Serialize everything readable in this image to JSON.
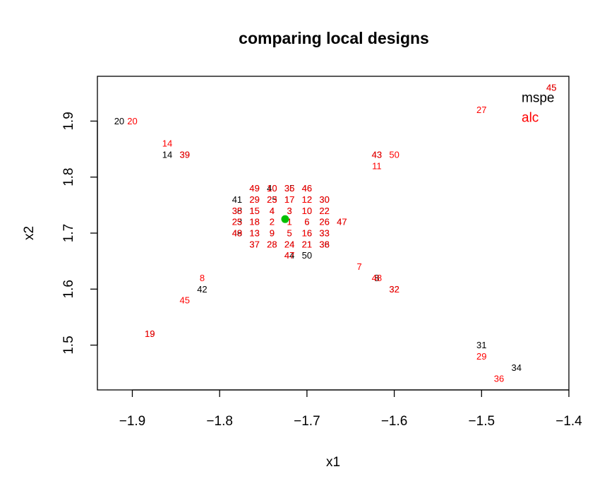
{
  "chart_data": {
    "type": "scatter",
    "title": "comparing local designs",
    "xlabel": "x1",
    "ylabel": "x2",
    "xlim": [
      -1.94,
      -1.4
    ],
    "ylim": [
      1.42,
      1.98
    ],
    "xticks": [
      -1.9,
      -1.8,
      -1.7,
      -1.6,
      -1.5,
      -1.4
    ],
    "yticks": [
      1.5,
      1.6,
      1.7,
      1.8,
      1.9
    ],
    "xtick_labels": [
      "−1.9",
      "−1.8",
      "−1.7",
      "−1.6",
      "−1.5",
      "−1.4"
    ],
    "ytick_labels": [
      "1.5",
      "1.6",
      "1.7",
      "1.8",
      "1.9"
    ],
    "grid": false,
    "legend_position": "top-right",
    "reference_point": {
      "x": -1.725,
      "y": 1.725,
      "color": "#00c000"
    },
    "series": [
      {
        "name": "mspe",
        "color": "#000000",
        "points": [
          {
            "label": "20",
            "x": -1.915,
            "y": 1.9
          },
          {
            "label": "14",
            "x": -1.86,
            "y": 1.84
          },
          {
            "label": "39",
            "x": -1.84,
            "y": 1.84
          },
          {
            "label": "42",
            "x": -1.82,
            "y": 1.6
          },
          {
            "label": "19",
            "x": -1.88,
            "y": 1.52
          },
          {
            "label": "41",
            "x": -1.78,
            "y": 1.76
          },
          {
            "label": "29",
            "x": -1.76,
            "y": 1.76
          },
          {
            "label": "25",
            "x": -1.74,
            "y": 1.76
          },
          {
            "label": "17",
            "x": -1.72,
            "y": 1.76
          },
          {
            "label": "12",
            "x": -1.7,
            "y": 1.76
          },
          {
            "label": "30",
            "x": -1.68,
            "y": 1.76
          },
          {
            "label": "49",
            "x": -1.76,
            "y": 1.78
          },
          {
            "label": "40",
            "x": -1.74,
            "y": 1.78
          },
          {
            "label": "35",
            "x": -1.72,
            "y": 1.78
          },
          {
            "label": "46",
            "x": -1.7,
            "y": 1.78
          },
          {
            "label": "38",
            "x": -1.78,
            "y": 1.74
          },
          {
            "label": "15",
            "x": -1.76,
            "y": 1.74
          },
          {
            "label": "4",
            "x": -1.74,
            "y": 1.74
          },
          {
            "label": "3",
            "x": -1.72,
            "y": 1.74
          },
          {
            "label": "10",
            "x": -1.7,
            "y": 1.74
          },
          {
            "label": "22",
            "x": -1.68,
            "y": 1.74
          },
          {
            "label": "23",
            "x": -1.78,
            "y": 1.72
          },
          {
            "label": "18",
            "x": -1.76,
            "y": 1.72
          },
          {
            "label": "2",
            "x": -1.74,
            "y": 1.72
          },
          {
            "label": "1",
            "x": -1.72,
            "y": 1.72
          },
          {
            "label": "6",
            "x": -1.7,
            "y": 1.72
          },
          {
            "label": "26",
            "x": -1.68,
            "y": 1.72
          },
          {
            "label": "47",
            "x": -1.66,
            "y": 1.72
          },
          {
            "label": "48",
            "x": -1.78,
            "y": 1.7
          },
          {
            "label": "13",
            "x": -1.76,
            "y": 1.7
          },
          {
            "label": "9",
            "x": -1.74,
            "y": 1.7
          },
          {
            "label": "5",
            "x": -1.72,
            "y": 1.7
          },
          {
            "label": "16",
            "x": -1.7,
            "y": 1.7
          },
          {
            "label": "33",
            "x": -1.68,
            "y": 1.7
          },
          {
            "label": "37",
            "x": -1.76,
            "y": 1.68
          },
          {
            "label": "28",
            "x": -1.74,
            "y": 1.68
          },
          {
            "label": "24",
            "x": -1.72,
            "y": 1.68
          },
          {
            "label": "21",
            "x": -1.7,
            "y": 1.68
          },
          {
            "label": "36",
            "x": -1.68,
            "y": 1.68
          },
          {
            "label": "44",
            "x": -1.72,
            "y": 1.66
          },
          {
            "label": "50",
            "x": -1.7,
            "y": 1.66
          },
          {
            "label": "43",
            "x": -1.62,
            "y": 1.84
          },
          {
            "label": "8",
            "x": -1.62,
            "y": 1.62
          },
          {
            "label": "32",
            "x": -1.6,
            "y": 1.6
          },
          {
            "label": "31",
            "x": -1.5,
            "y": 1.5
          },
          {
            "label": "34",
            "x": -1.46,
            "y": 1.46
          },
          {
            "label": "45",
            "x": -1.42,
            "y": 1.96
          }
        ]
      },
      {
        "name": "alc",
        "color": "#ff0000",
        "points": [
          {
            "label": "20",
            "x": -1.9,
            "y": 1.9
          },
          {
            "label": "14",
            "x": -1.86,
            "y": 1.86
          },
          {
            "label": "39",
            "x": -1.84,
            "y": 1.84
          },
          {
            "label": "8",
            "x": -1.82,
            "y": 1.62
          },
          {
            "label": "45",
            "x": -1.84,
            "y": 1.58
          },
          {
            "label": "19",
            "x": -1.88,
            "y": 1.52
          },
          {
            "label": "49",
            "x": -1.76,
            "y": 1.78
          },
          {
            "label": "10",
            "x": -1.74,
            "y": 1.78
          },
          {
            "label": "36",
            "x": -1.72,
            "y": 1.78
          },
          {
            "label": "46",
            "x": -1.7,
            "y": 1.78
          },
          {
            "label": "29",
            "x": -1.76,
            "y": 1.76
          },
          {
            "label": "23",
            "x": -1.74,
            "y": 1.76
          },
          {
            "label": "17",
            "x": -1.72,
            "y": 1.76
          },
          {
            "label": "12",
            "x": -1.7,
            "y": 1.76
          },
          {
            "label": "30",
            "x": -1.68,
            "y": 1.76
          },
          {
            "label": "35",
            "x": -1.78,
            "y": 1.74
          },
          {
            "label": "15",
            "x": -1.76,
            "y": 1.74
          },
          {
            "label": "4",
            "x": -1.74,
            "y": 1.74
          },
          {
            "label": "3",
            "x": -1.72,
            "y": 1.74
          },
          {
            "label": "10",
            "x": -1.7,
            "y": 1.74
          },
          {
            "label": "22",
            "x": -1.68,
            "y": 1.74
          },
          {
            "label": "25",
            "x": -1.78,
            "y": 1.72
          },
          {
            "label": "18",
            "x": -1.76,
            "y": 1.72
          },
          {
            "label": "2",
            "x": -1.74,
            "y": 1.72
          },
          {
            "label": "1",
            "x": -1.72,
            "y": 1.72
          },
          {
            "label": "6",
            "x": -1.7,
            "y": 1.72
          },
          {
            "label": "26",
            "x": -1.68,
            "y": 1.72
          },
          {
            "label": "47",
            "x": -1.66,
            "y": 1.72
          },
          {
            "label": "49",
            "x": -1.78,
            "y": 1.7
          },
          {
            "label": "13",
            "x": -1.76,
            "y": 1.7
          },
          {
            "label": "9",
            "x": -1.74,
            "y": 1.7
          },
          {
            "label": "5",
            "x": -1.72,
            "y": 1.7
          },
          {
            "label": "16",
            "x": -1.7,
            "y": 1.7
          },
          {
            "label": "33",
            "x": -1.68,
            "y": 1.7
          },
          {
            "label": "37",
            "x": -1.76,
            "y": 1.68
          },
          {
            "label": "28",
            "x": -1.74,
            "y": 1.68
          },
          {
            "label": "24",
            "x": -1.72,
            "y": 1.68
          },
          {
            "label": "21",
            "x": -1.7,
            "y": 1.68
          },
          {
            "label": "38",
            "x": -1.68,
            "y": 1.68
          },
          {
            "label": "47",
            "x": -1.72,
            "y": 1.66
          },
          {
            "label": "43",
            "x": -1.62,
            "y": 1.84
          },
          {
            "label": "50",
            "x": -1.6,
            "y": 1.84
          },
          {
            "label": "11",
            "x": -1.62,
            "y": 1.82
          },
          {
            "label": "7",
            "x": -1.64,
            "y": 1.64
          },
          {
            "label": "48",
            "x": -1.62,
            "y": 1.62
          },
          {
            "label": "32",
            "x": -1.6,
            "y": 1.6
          },
          {
            "label": "27",
            "x": -1.5,
            "y": 1.92
          },
          {
            "label": "29",
            "x": -1.5,
            "y": 1.48
          },
          {
            "label": "36",
            "x": -1.48,
            "y": 1.44
          },
          {
            "label": "45",
            "x": -1.42,
            "y": 1.96
          }
        ]
      }
    ]
  }
}
